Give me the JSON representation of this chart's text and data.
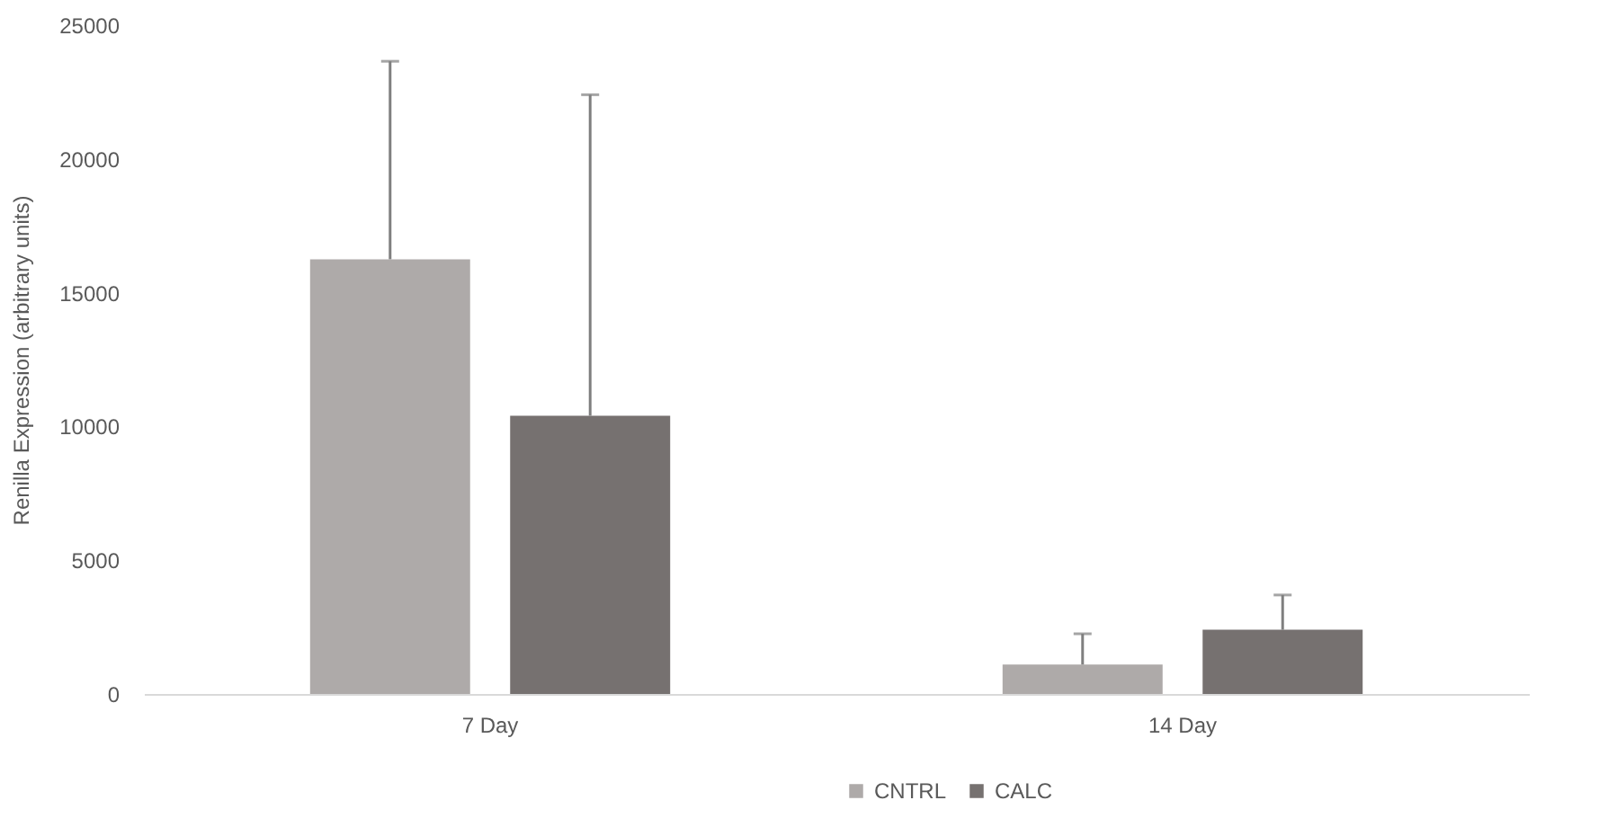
{
  "chart_data": {
    "type": "bar",
    "ylabel": "Renilla Expression (arbitrary units)",
    "categories": [
      "7 Day",
      "14 Day"
    ],
    "series": [
      {
        "name": "CNTRL",
        "color": "#aeaaa9",
        "values": [
          16250,
          1100
        ],
        "errors": [
          [
            16250,
            23650
          ],
          [
            1100,
            2250
          ]
        ]
      },
      {
        "name": "CALC",
        "color": "#767170",
        "values": [
          10400,
          2400
        ],
        "errors": [
          [
            10400,
            22400
          ],
          [
            2400,
            3700
          ]
        ]
      }
    ],
    "ylim": [
      0,
      25000
    ],
    "yticks": [
      0,
      5000,
      10000,
      15000,
      20000,
      25000
    ],
    "grid": false,
    "legend": "bottom"
  }
}
